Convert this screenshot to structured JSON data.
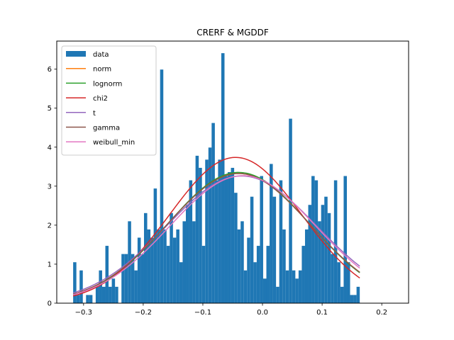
{
  "chart_data": {
    "type": "bar",
    "title": "CRERF & MGDDF",
    "xlabel": "",
    "ylabel": "",
    "xlim": [
      -0.345,
      0.245
    ],
    "ylim": [
      0,
      6.72
    ],
    "grid": false,
    "legend_placement": "top-left",
    "x_ticks": [
      -0.3,
      -0.2,
      -0.1,
      0.0,
      0.1,
      0.2
    ],
    "x_tick_labels": [
      "−0.3",
      "−0.2",
      "−0.1",
      "0.0",
      "0.1",
      "0.2"
    ],
    "y_ticks": [
      0,
      1,
      2,
      3,
      4,
      5,
      6
    ],
    "y_tick_labels": [
      "0",
      "1",
      "2",
      "3",
      "4",
      "5",
      "6"
    ],
    "histogram": {
      "name": "data",
      "color": "#1f77b4",
      "bin_start": -0.3175,
      "bin_width": 0.0054,
      "heights": [
        1.05,
        0.21,
        0.84,
        0.0,
        0.21,
        0.21,
        0.0,
        0.42,
        0.84,
        0.42,
        1.47,
        0.42,
        0.63,
        0.42,
        0.0,
        1.26,
        1.26,
        2.1,
        1.26,
        0.84,
        1.68,
        1.26,
        2.31,
        1.89,
        1.68,
        2.94,
        1.89,
        5.99,
        1.89,
        1.47,
        2.31,
        1.68,
        1.89,
        1.05,
        2.1,
        2.52,
        3.15,
        2.1,
        3.78,
        3.47,
        1.47,
        3.68,
        3.99,
        4.62,
        3.15,
        3.68,
        6.41,
        3.26,
        3.36,
        3.47,
        2.83,
        1.89,
        2.1,
        0.84,
        1.68,
        2.73,
        1.05,
        1.47,
        3.26,
        0.63,
        1.47,
        3.57,
        2.73,
        0.42,
        3.15,
        1.89,
        0.84,
        4.73,
        0.84,
        0.63,
        0.84,
        1.47,
        1.89,
        2.52,
        3.26,
        3.15,
        2.1,
        2.52,
        2.73,
        2.31,
        1.26,
        3.15,
        1.05,
        0.42,
        3.26,
        1.05,
        0.21,
        0.21,
        0.42
      ]
    },
    "series": [
      {
        "name": "norm",
        "color": "#ff7f0e",
        "mu": -0.04,
        "sigma": 0.12,
        "scale": 1.0
      },
      {
        "name": "lognorm",
        "color": "#2ca02c",
        "mu": -0.04,
        "sigma": 0.119,
        "scale": 1.0
      },
      {
        "name": "chi2",
        "color": "#d62728",
        "mu": -0.045,
        "sigma": 0.111,
        "scale": 1.04
      },
      {
        "name": "t",
        "color": "#9467bd",
        "mu": -0.035,
        "sigma": 0.126,
        "scale": 1.03
      },
      {
        "name": "gamma",
        "color": "#8c564b",
        "mu": -0.04,
        "sigma": 0.12,
        "scale": 1.0
      },
      {
        "name": "weibull_min",
        "color": "#e377c2",
        "mu": -0.033,
        "sigma": 0.122,
        "scale": 1.0
      }
    ]
  }
}
